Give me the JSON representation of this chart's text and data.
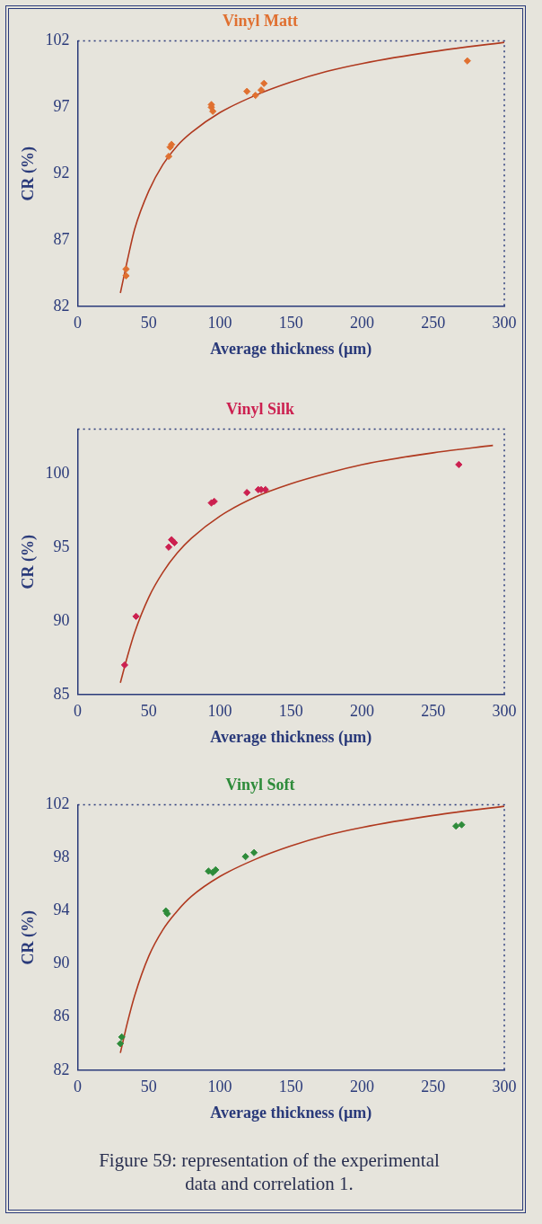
{
  "chart_data": [
    {
      "type": "scatter",
      "title": "Vinyl Matt",
      "xlabel": "Average thickness (µm)",
      "ylabel": "CR (%)",
      "xlim": [
        0,
        300
      ],
      "xticks": [
        0,
        50,
        100,
        150,
        200,
        250,
        300
      ],
      "ylim": [
        82,
        102
      ],
      "yticks": [
        82,
        87,
        92,
        97,
        102
      ],
      "grid": false,
      "legend": false,
      "series": [
        {
          "type": "scatter",
          "marker": "diamond",
          "color": "#e07030",
          "x": [
            34,
            34,
            64,
            65,
            66,
            94,
            95,
            94,
            119,
            125,
            129,
            131,
            274
          ],
          "values": [
            84.8,
            84.3,
            93.3,
            94.0,
            94.2,
            97.0,
            96.7,
            97.2,
            98.2,
            97.9,
            98.3,
            98.8,
            100.5
          ]
        },
        {
          "type": "line",
          "marker": "none",
          "line_style": "solid",
          "color": "#b03a20",
          "x": [
            30,
            35,
            40,
            50,
            60,
            70,
            80,
            100,
            125,
            150,
            175,
            200,
            250,
            300
          ],
          "values": [
            83,
            85.5,
            87.8,
            90.7,
            92.7,
            94.1,
            95.1,
            96.6,
            97.9,
            98.9,
            99.7,
            100.3,
            101.2,
            101.9
          ]
        }
      ]
    },
    {
      "type": "scatter",
      "title": "Vinyl Silk",
      "xlabel": "Average thickness (µm)",
      "ylabel": "CR (%)",
      "xlim": [
        0,
        300
      ],
      "xticks": [
        0,
        50,
        100,
        150,
        200,
        250,
        300
      ],
      "ylim": [
        85,
        103
      ],
      "yticks": [
        85,
        90,
        95,
        100
      ],
      "grid": false,
      "legend": false,
      "series": [
        {
          "type": "scatter",
          "marker": "diamond",
          "color": "#cc2050",
          "x": [
            33,
            41,
            64,
            66,
            68,
            94,
            96,
            119,
            127,
            129,
            132,
            268
          ],
          "values": [
            87.0,
            90.3,
            95.0,
            95.5,
            95.3,
            98.0,
            98.1,
            98.7,
            98.9,
            98.9,
            98.9,
            100.6
          ]
        },
        {
          "type": "line",
          "marker": "none",
          "line_style": "solid",
          "color": "#b03a20",
          "x": [
            30,
            35,
            40,
            50,
            60,
            70,
            80,
            100,
            125,
            150,
            175,
            200,
            250,
            292
          ],
          "values": [
            85.8,
            87.6,
            89.2,
            91.6,
            93.3,
            94.6,
            95.6,
            97.1,
            98.4,
            99.3,
            100.0,
            100.6,
            101.4,
            101.9
          ]
        }
      ]
    },
    {
      "type": "scatter",
      "title": "Vinyl Soft",
      "xlabel": "Average thickness (µm)",
      "ylabel": "CR (%)",
      "xlim": [
        0,
        300
      ],
      "xticks": [
        0,
        50,
        100,
        150,
        200,
        250,
        300
      ],
      "ylim": [
        82,
        102
      ],
      "yticks": [
        82,
        86,
        90,
        94,
        98,
        102
      ],
      "grid": false,
      "legend": false,
      "annotations": [
        "Figure 59: representation of the experimental data and correlation 1."
      ],
      "series": [
        {
          "type": "scatter",
          "marker": "diamond",
          "color": "#2e8b3a",
          "x": [
            30,
            31,
            62,
            63,
            92,
            95,
            97,
            118,
            124,
            266,
            270
          ],
          "values": [
            84.0,
            84.5,
            94.0,
            93.8,
            97.0,
            96.9,
            97.1,
            98.1,
            98.4,
            100.4,
            100.5
          ]
        },
        {
          "type": "line",
          "marker": "none",
          "line_style": "solid",
          "color": "#b03a20",
          "x": [
            30,
            35,
            40,
            50,
            60,
            70,
            80,
            100,
            125,
            150,
            175,
            200,
            250,
            300
          ],
          "values": [
            83.3,
            85.6,
            87.6,
            90.6,
            92.6,
            94.0,
            95.1,
            96.6,
            97.9,
            98.9,
            99.7,
            100.3,
            101.2,
            101.9
          ]
        }
      ]
    }
  ]
}
